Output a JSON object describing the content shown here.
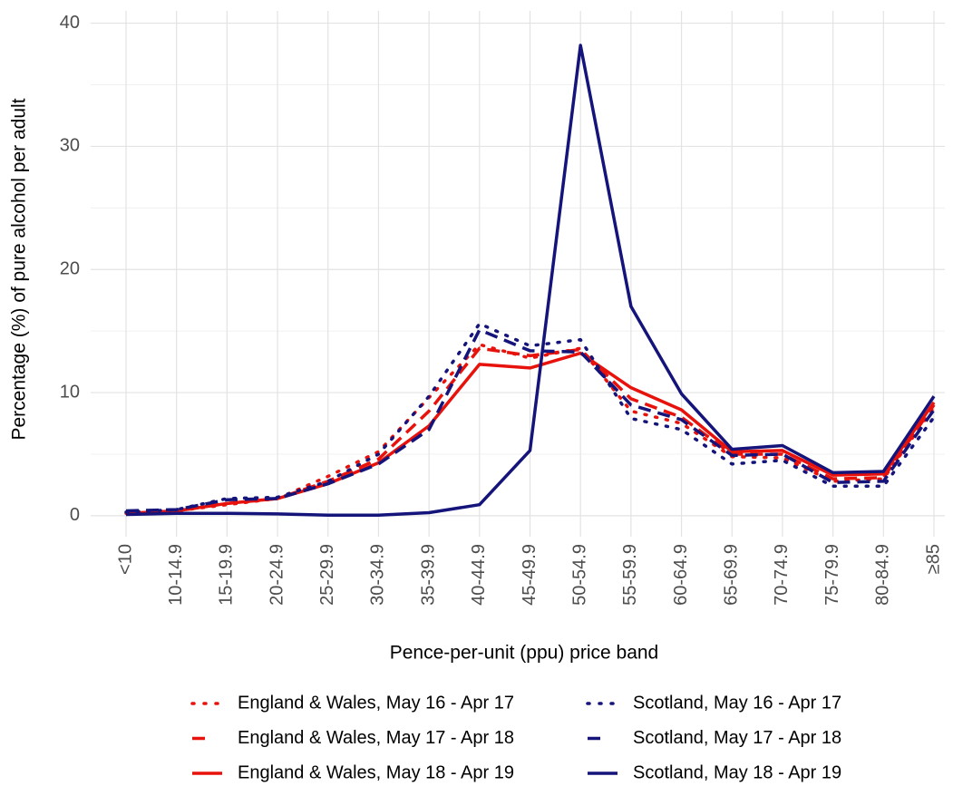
{
  "chart_data": {
    "type": "line",
    "x_label": "Pence-per-unit (ppu) price band",
    "y_label": "Percentage (%) of pure alcohol per adult",
    "categories": [
      "<10",
      "10-14.9",
      "15-19.9",
      "20-24.9",
      "25-29.9",
      "30-34.9",
      "35-39.9",
      "40-44.9",
      "45-49.9",
      "50-54.9",
      "55-59.9",
      "60-64.9",
      "65-69.9",
      "70-74.9",
      "75-79.9",
      "80-84.9",
      "≥85"
    ],
    "ylim": [
      -1.7,
      41
    ],
    "yticks": [
      0,
      10,
      20,
      30,
      40
    ],
    "minor_yticks": [
      5,
      15,
      25,
      35
    ],
    "grid": true,
    "legend": "bottom",
    "series": [
      {
        "name": "England & Wales, May 16 - Apr 17",
        "color": "#e8120c",
        "dash": "dotted",
        "values": [
          0.2,
          0.4,
          0.9,
          1.4,
          3.2,
          5.2,
          9.6,
          13.9,
          12.8,
          13.6,
          8.5,
          7.5,
          4.8,
          4.7,
          2.8,
          3.0,
          8.8
        ]
      },
      {
        "name": "England & Wales, May 17 - Apr 18",
        "color": "#e8120c",
        "dash": "dashed",
        "values": [
          0.2,
          0.4,
          1.0,
          1.4,
          2.8,
          4.6,
          8.5,
          13.6,
          13.0,
          13.5,
          9.5,
          8.0,
          5.0,
          5.0,
          3.0,
          3.1,
          9.0
        ]
      },
      {
        "name": "England & Wales, May 18 - Apr 19",
        "color": "#e8120c",
        "dash": "solid",
        "values": [
          0.2,
          0.4,
          1.0,
          1.4,
          2.6,
          4.3,
          7.3,
          12.3,
          12.0,
          13.2,
          10.4,
          8.6,
          5.2,
          5.3,
          3.3,
          3.4,
          9.2
        ]
      },
      {
        "name": "Scotland, May 16 - Apr 17",
        "color": "#14147a",
        "dash": "dotted",
        "values": [
          0.3,
          0.5,
          1.4,
          1.5,
          2.8,
          5.0,
          9.7,
          15.6,
          13.8,
          14.3,
          7.9,
          7.0,
          4.2,
          4.5,
          2.4,
          2.4,
          8.0
        ]
      },
      {
        "name": "Scotland, May 17 - Apr 18",
        "color": "#14147a",
        "dash": "dashed",
        "values": [
          0.4,
          0.5,
          1.3,
          1.4,
          2.6,
          4.2,
          7.0,
          15.1,
          13.4,
          13.3,
          9.0,
          7.8,
          4.9,
          5.0,
          2.7,
          2.8,
          8.6
        ]
      },
      {
        "name": "Scotland, May 18 - Apr 19",
        "color": "#14147a",
        "dash": "solid",
        "values": [
          0.1,
          0.2,
          0.2,
          0.15,
          0.05,
          0.05,
          0.25,
          0.9,
          5.3,
          38.2,
          17.0,
          9.9,
          5.4,
          5.7,
          3.5,
          3.6,
          9.7
        ]
      }
    ]
  }
}
